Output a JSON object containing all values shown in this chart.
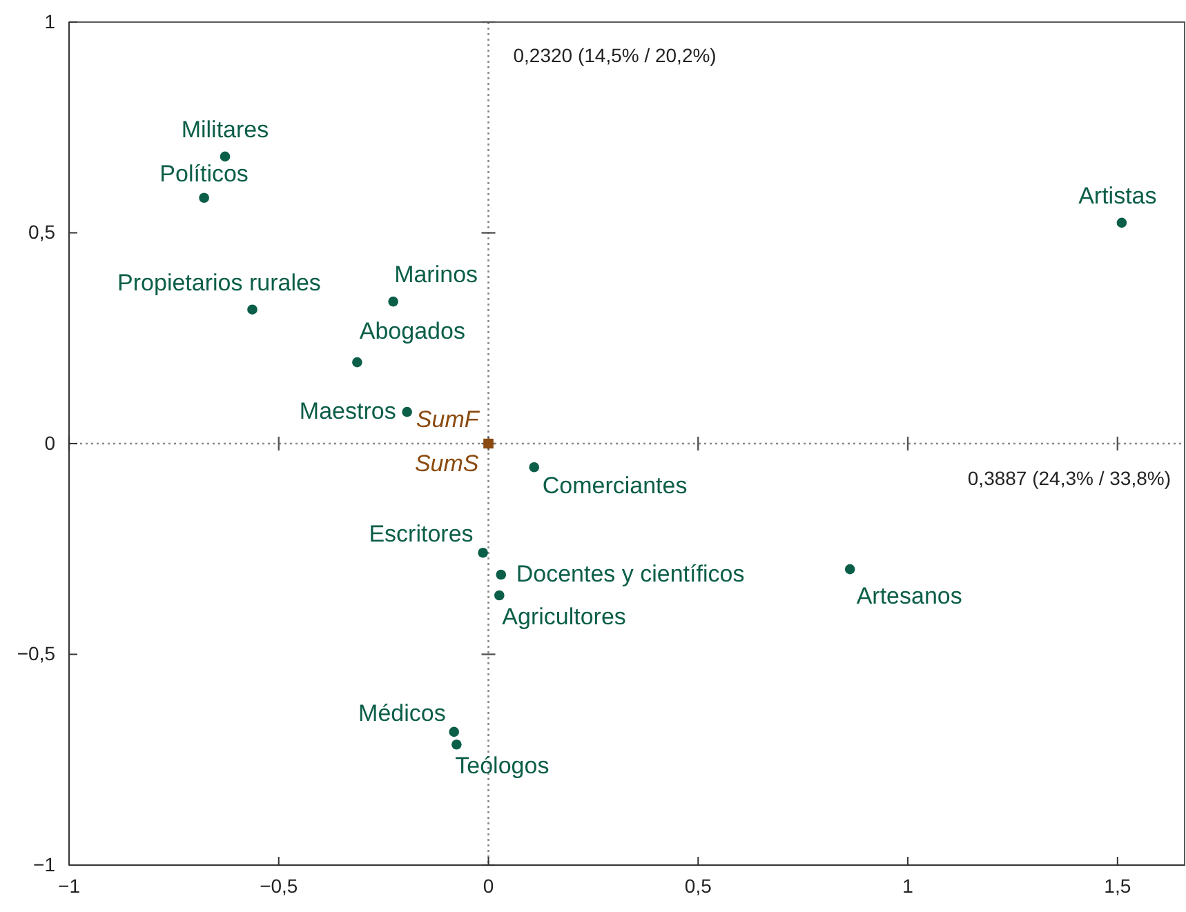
{
  "chart_data": {
    "type": "scatter",
    "xlabel": "0,3887 (24,3% / 33,8%)",
    "ylabel": "0,2320 (14,5% / 20,2%)",
    "xlim": [
      -1,
      1.66
    ],
    "ylim": [
      -1,
      1
    ],
    "xticks": [
      {
        "value": -1,
        "label": "−1"
      },
      {
        "value": -0.5,
        "label": "−0,5"
      },
      0,
      {
        "value": 0.5,
        "label": "0,5"
      },
      1,
      {
        "value": 1.5,
        "label": "1,5"
      }
    ],
    "yticks": [
      {
        "value": -1,
        "label": "−1"
      },
      {
        "value": -0.5,
        "label": "−0,5"
      },
      0,
      {
        "value": 0.5,
        "label": "0,5"
      },
      1
    ],
    "grid": false,
    "ref_lines": [
      {
        "axis": "x",
        "value": 0,
        "line_style": "dotted",
        "color": "#888888"
      },
      {
        "axis": "y",
        "value": 0,
        "line_style": "dotted",
        "color": "#888888"
      }
    ],
    "series": [
      {
        "color": "#0b5e48",
        "marker": "circle",
        "x": [
          -0.628,
          -0.678,
          -0.563,
          -0.227,
          -0.313,
          -0.194,
          0.109,
          -0.013,
          0.03,
          0.026,
          0.862,
          1.51,
          -0.082,
          -0.076
        ],
        "values": [
          0.681,
          0.583,
          0.318,
          0.337,
          0.193,
          0.075,
          -0.056,
          -0.259,
          -0.311,
          -0.36,
          -0.298,
          0.524,
          -0.684,
          -0.714
        ],
        "value_labels": [
          "Militares",
          "Políticos",
          "Propietarios rurales",
          "Marinos",
          "Abogados",
          "Maestros",
          "Comerciantes",
          "Escritores",
          "Docentes y científicos",
          "Agricultores",
          "Artesanos",
          "Artistas",
          "Médicos",
          "Teólogos"
        ]
      },
      {
        "color": "#8b4a0f",
        "marker": "square",
        "x": [
          0,
          0
        ],
        "values": [
          0,
          0
        ],
        "value_labels": [
          "SumF",
          "SumS"
        ]
      }
    ]
  }
}
